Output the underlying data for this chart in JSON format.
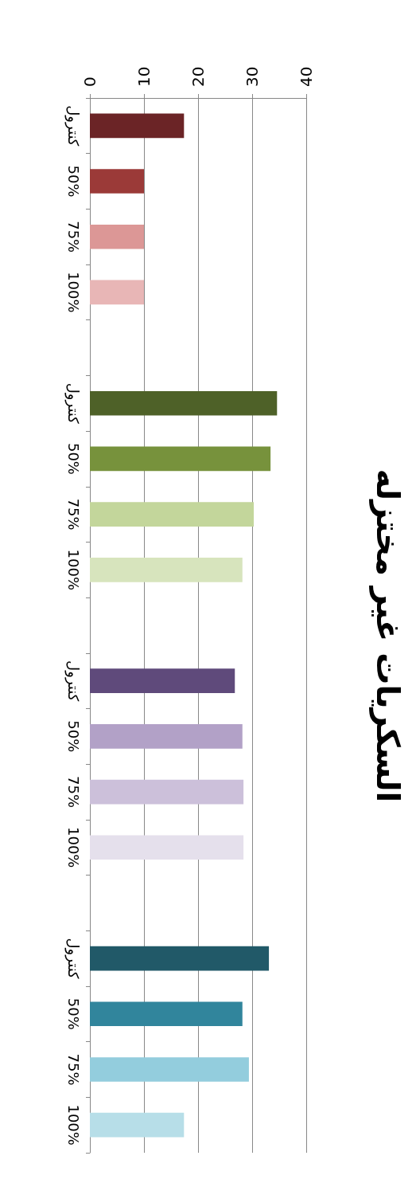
{
  "chart_data": {
    "type": "bar",
    "orientation": "horizontal",
    "title": "السكريات غير مختزله",
    "categories": [
      "كنترول",
      "50%",
      "75%",
      "100%",
      null,
      "كنترول",
      "50%",
      "75%",
      "100%",
      null,
      "كنترول",
      "50%",
      "75%",
      "100%",
      null,
      "كنترول",
      "50%",
      "75%",
      "100%"
    ],
    "values": [
      17.4,
      10,
      10,
      10,
      null,
      34.6,
      33.4,
      30.3,
      28.2,
      null,
      26.8,
      28.2,
      28.4,
      28.4,
      null,
      33.1,
      28.2,
      29.4,
      17.4
    ],
    "colors": [
      "#6b2426",
      "#9b3a38",
      "#dc9796",
      "#e8b6b6",
      null,
      "#4e6128",
      "#77923c",
      "#c3d69b",
      "#d7e4bd",
      null,
      "#5f4a7b",
      "#b2a1c7",
      "#ccc0da",
      "#e5e0ec",
      null,
      "#215968",
      "#31859c",
      "#93cddd",
      "#b7dee8"
    ],
    "xlim": [
      0,
      40
    ],
    "xticks": [
      0,
      10,
      20,
      30,
      40
    ],
    "grid": "x"
  }
}
